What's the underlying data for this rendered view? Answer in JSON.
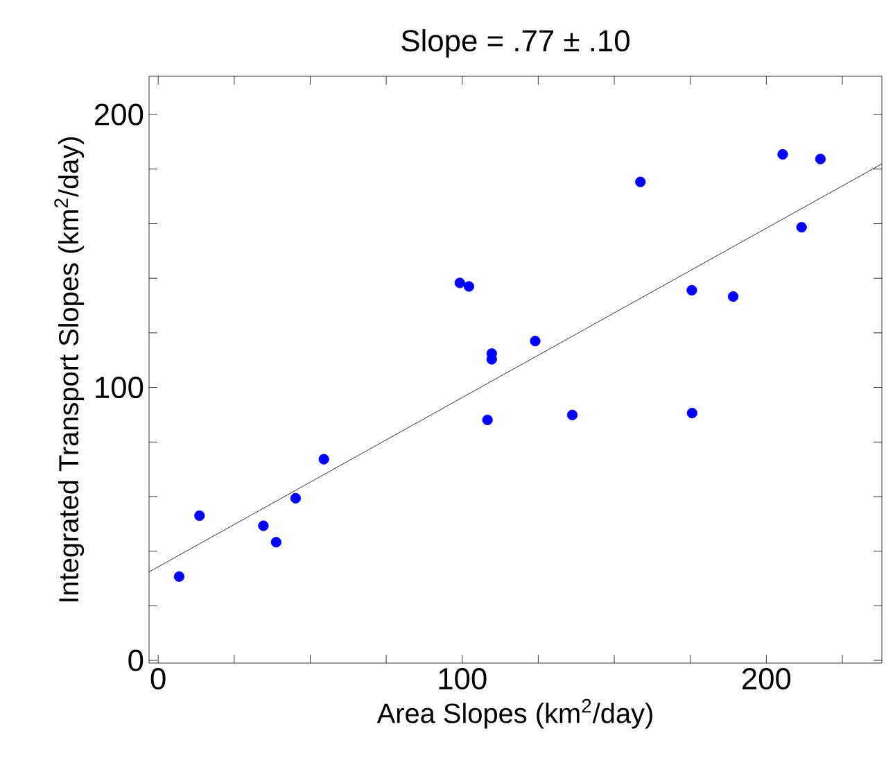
{
  "chart_data": {
    "type": "scatter",
    "title": "Slope = .77 ± .10",
    "xlabel": "Area Slopes (km$^{2}$/day)",
    "ylabel": "Integrated Transport Slopes (km$^{2}$/day)",
    "xlim": [
      -3,
      238
    ],
    "ylim": [
      -1,
      214
    ],
    "xticks": [
      0,
      {
        "value": 25,
        "label": null
      },
      {
        "value": 50,
        "label": null
      },
      {
        "value": 75,
        "label": null
      },
      100,
      {
        "value": 125,
        "label": null
      },
      {
        "value": 150,
        "label": null
      },
      {
        "value": 175,
        "label": null
      },
      200,
      {
        "value": 225,
        "label": null
      }
    ],
    "yticks": [
      0,
      {
        "value": 20,
        "label": null
      },
      {
        "value": 40,
        "label": null
      },
      {
        "value": 60,
        "label": null
      },
      {
        "value": 80,
        "label": null
      },
      100,
      {
        "value": 120,
        "label": null
      },
      {
        "value": 140,
        "label": null
      },
      {
        "value": 160,
        "label": null
      },
      {
        "value": 180,
        "label": null
      },
      200
    ],
    "grid": false,
    "series": [
      {
        "color": "#0000ff",
        "marker": "circle",
        "x": [
          205.4,
          217.8,
          158.6,
          211.6,
          99.2,
          102.2,
          175.5,
          189.1,
          124.0,
          109.7,
          109.7,
          108.3,
          136.2,
          175.6,
          54.5,
          45.2,
          13.6,
          34.6,
          38.8,
          6.9
        ],
        "values": [
          185.4,
          183.7,
          175.3,
          158.7,
          138.3,
          137.0,
          135.6,
          133.3,
          117.0,
          112.4,
          110.3,
          88.1,
          89.9,
          90.6,
          73.7,
          59.4,
          53.0,
          49.3,
          43.3,
          30.7
        ]
      },
      {
        "type": "line",
        "color": "#000000",
        "marker": "none",
        "x": [
          -3,
          238
        ],
        "values": [
          32.4,
          181.9
        ]
      }
    ]
  }
}
